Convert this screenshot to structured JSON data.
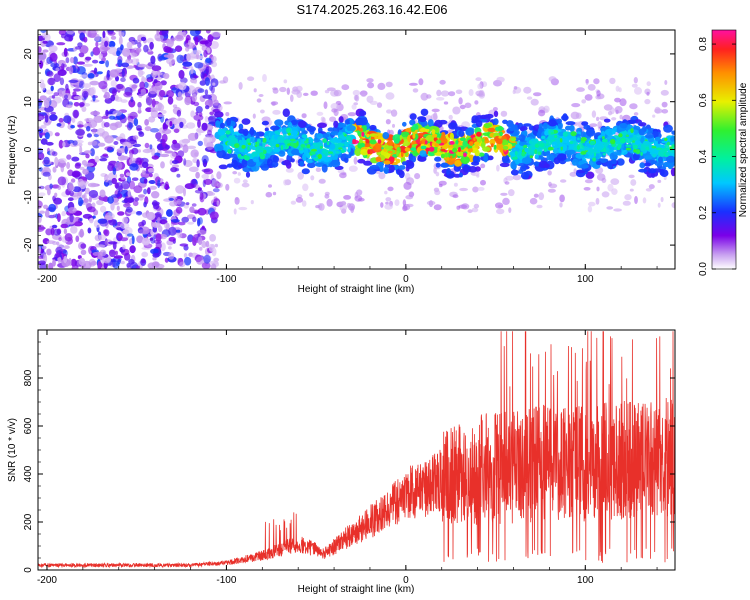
{
  "title": "S174.2025.263.16.42.E06",
  "chart_data": [
    {
      "type": "heatmap",
      "name": "spectrogram",
      "xlabel": "Height of straight line (km)",
      "ylabel": "Frequency (Hz)",
      "xlim": [
        -205,
        150
      ],
      "ylim": [
        -25,
        25
      ],
      "xticks": [
        -200,
        -100,
        0,
        100
      ],
      "yticks": [
        -20,
        -10,
        0,
        10,
        20
      ],
      "colorbar": {
        "label": "Normalized spectral amplitude",
        "ticks": [
          0.0,
          0.2,
          0.4,
          0.6,
          0.8
        ],
        "tick_labels": [
          "0.0",
          "0.2",
          "0.4",
          "0.6",
          "0.8"
        ],
        "range": [
          0,
          0.85
        ]
      },
      "regions": [
        {
          "description": "broadband noise",
          "x": [
            -205,
            -105
          ],
          "y": [
            -25,
            25
          ],
          "amplitude": 0.1
        },
        {
          "description": "signal band",
          "x": [
            -105,
            150
          ],
          "center_hz": 1,
          "halfwidth_hz": 6,
          "amplitude": 0.3
        },
        {
          "description": "peak band",
          "x": [
            -30,
            60
          ],
          "center_hz": 1,
          "halfwidth_hz": 3,
          "amplitude": 0.75
        }
      ]
    },
    {
      "type": "line",
      "name": "snr",
      "xlabel": "Height of straight line (km)",
      "ylabel": "SNR (10 * v/v)",
      "xlim": [
        -205,
        150
      ],
      "ylim": [
        0,
        1000
      ],
      "xticks": [
        -200,
        -100,
        0,
        100
      ],
      "yticks": [
        0,
        200,
        400,
        600,
        800
      ],
      "color": "#e8302a",
      "trend": {
        "x": [
          -205,
          -120,
          -100,
          -80,
          -60,
          -45,
          -30,
          -10,
          0,
          10,
          20,
          40,
          60,
          80,
          100,
          120,
          150
        ],
        "y": [
          20,
          20,
          30,
          60,
          110,
          70,
          150,
          250,
          320,
          330,
          380,
          420,
          430,
          450,
          440,
          460,
          470
        ]
      }
    }
  ]
}
